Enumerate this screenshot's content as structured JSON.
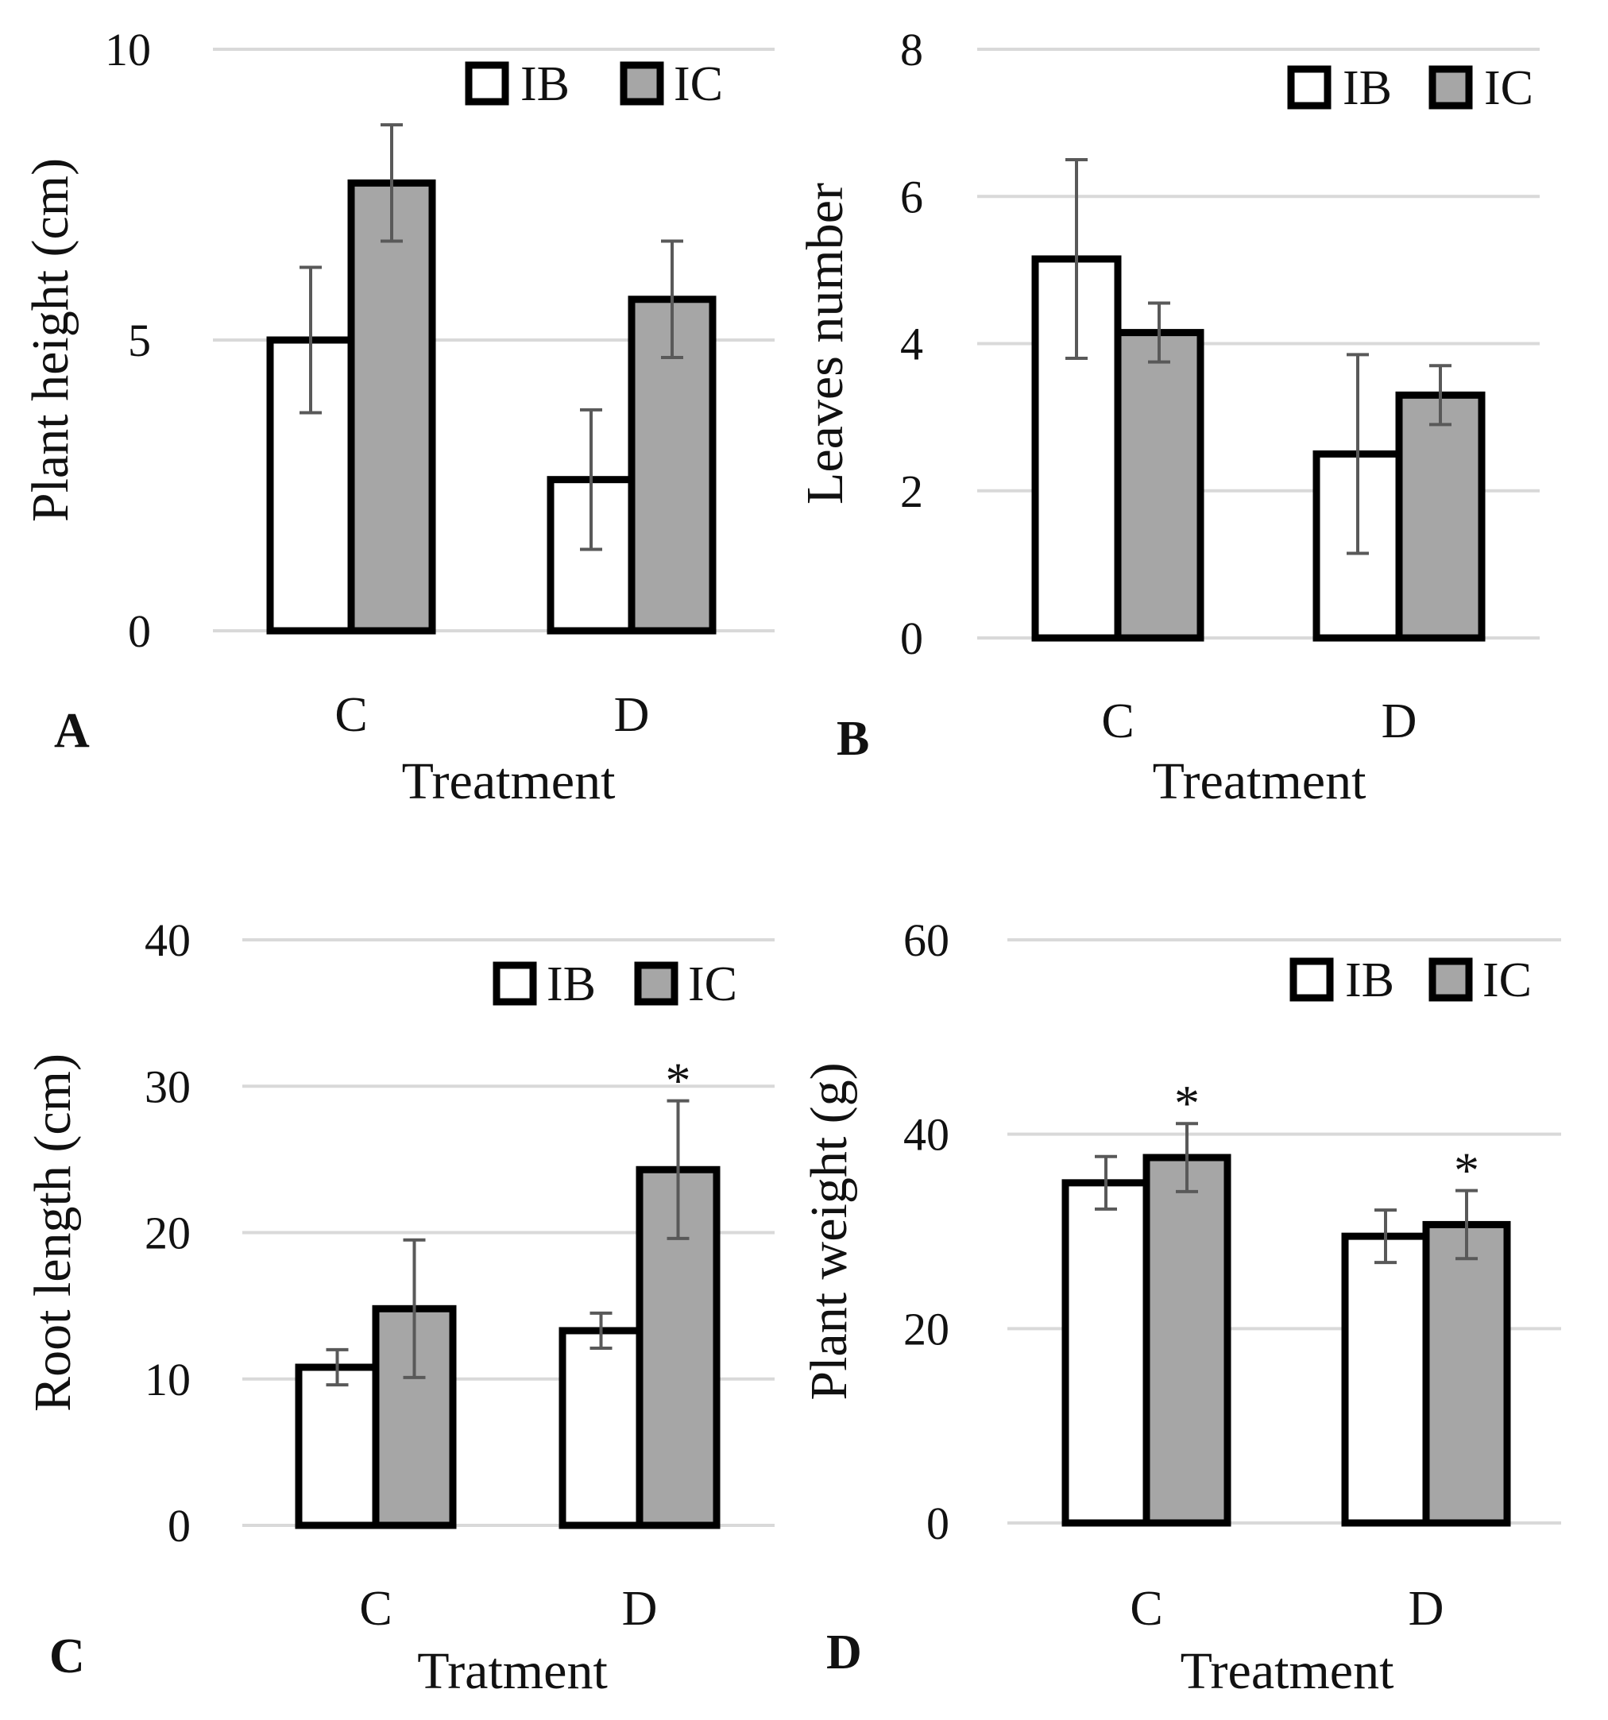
{
  "colors": {
    "series_IB": "#ffffff",
    "series_IC": "#a6a6a6",
    "bar_stroke": "#000000",
    "error_bar": "#595959",
    "gridline": "#d9d9d9"
  },
  "legend": {
    "items": [
      "IB",
      "IC"
    ]
  },
  "chart_data": [
    {
      "panel": "A",
      "type": "bar",
      "categories": [
        "C",
        "D"
      ],
      "xlabel": "Treatment",
      "ylabel": "Plant height (cm)",
      "ylim": [
        0,
        10
      ],
      "yticks": [
        0,
        5,
        10
      ],
      "legend_position": "top-right",
      "series": [
        {
          "name": "IB",
          "values": [
            5.0,
            2.6
          ],
          "errors": [
            1.25,
            1.2
          ],
          "annotations": [
            "",
            ""
          ]
        },
        {
          "name": "IC",
          "values": [
            7.7,
            5.7
          ],
          "errors": [
            1.0,
            1.0
          ],
          "annotations": [
            "",
            ""
          ]
        }
      ]
    },
    {
      "panel": "B",
      "type": "bar",
      "categories": [
        "C",
        "D"
      ],
      "xlabel": "Treatment",
      "ylabel": "Leaves number",
      "ylim": [
        0,
        8
      ],
      "yticks": [
        0,
        2,
        4,
        6,
        8
      ],
      "legend_position": "top-right",
      "series": [
        {
          "name": "IB",
          "values": [
            5.15,
            2.5
          ],
          "errors": [
            1.35,
            1.35
          ],
          "annotations": [
            "",
            ""
          ]
        },
        {
          "name": "IC",
          "values": [
            4.15,
            3.3
          ],
          "errors": [
            0.4,
            0.4
          ],
          "annotations": [
            "",
            ""
          ]
        }
      ]
    },
    {
      "panel": "C",
      "type": "bar",
      "categories": [
        "C",
        "D"
      ],
      "xlabel": "Tratment",
      "ylabel": "Root length (cm)",
      "ylim": [
        0,
        40
      ],
      "yticks": [
        0,
        10,
        20,
        30,
        40
      ],
      "legend_position": "top-right",
      "series": [
        {
          "name": "IB",
          "values": [
            10.8,
            13.3
          ],
          "errors": [
            1.2,
            1.2
          ],
          "annotations": [
            "",
            ""
          ]
        },
        {
          "name": "IC",
          "values": [
            14.8,
            24.3
          ],
          "errors": [
            4.7,
            4.7
          ],
          "annotations": [
            "",
            "*"
          ]
        }
      ]
    },
    {
      "panel": "D",
      "type": "bar",
      "categories": [
        "C",
        "D"
      ],
      "xlabel": "Treatment",
      "ylabel": "Plant weight (g)",
      "ylim": [
        0,
        60
      ],
      "yticks": [
        0,
        20,
        40,
        60
      ],
      "legend_position": "top-right",
      "series": [
        {
          "name": "IB",
          "values": [
            35.0,
            29.5
          ],
          "errors": [
            2.7,
            2.7
          ],
          "annotations": [
            "",
            ""
          ]
        },
        {
          "name": "IC",
          "values": [
            37.6,
            30.7
          ],
          "errors": [
            3.5,
            3.5
          ],
          "annotations": [
            "*",
            "*"
          ]
        }
      ]
    }
  ]
}
